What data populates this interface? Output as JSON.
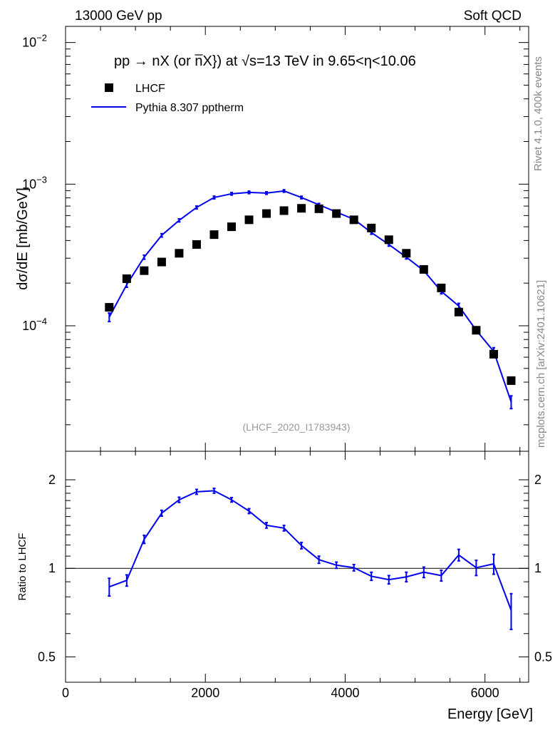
{
  "header": {
    "left_label": "13000 GeV pp",
    "right_label": "Soft QCD"
  },
  "side": {
    "rivet_label": "Rivet 4.1.0,  400k events",
    "mcplots_label": "mcplots.cern.ch [arXiv:2401.10621]"
  },
  "chart_data": {
    "type": "scatter",
    "title_parts": {
      "pre": "pp  →  nX (or ",
      "nbar": "n",
      "mid": "X}) at √",
      "post": "s=13 TeV in 9.65<η<10.06"
    },
    "analysis_id": "(LHCF_2020_I1783943)",
    "xlabel": "Energy [GeV]",
    "ylabel": "dσ/dE [mb/GeV]",
    "ratio_ylabel": "Ratio to LHCF",
    "xlim": [
      0,
      6625
    ],
    "ylim_log": [
      1.3e-05,
      0.013
    ],
    "ratio_ylim": [
      0.41,
      2.5
    ],
    "x_ticks": [
      0,
      2000,
      4000,
      6000
    ],
    "x_tick_labels": [
      "0",
      "2000",
      "4000",
      "6000"
    ],
    "y_tick_labels": [
      {
        "base": "10",
        "exp": "−2",
        "value": 0.01
      },
      {
        "base": "10",
        "exp": "−3",
        "value": 0.001
      },
      {
        "base": "10",
        "exp": "−4",
        "value": 0.0001
      }
    ],
    "ratio_tick_labels": [
      {
        "label": "2",
        "value": 2
      },
      {
        "label": "1",
        "value": 1
      },
      {
        "label": "0.5",
        "value": 0.5
      }
    ],
    "legend": [
      {
        "name": "LHCF",
        "marker": "square",
        "color": "#000000"
      },
      {
        "name": "Pythia 8.307 pptherm",
        "marker": "line",
        "color": "#0000ee"
      }
    ],
    "x": [
      625,
      875,
      1125,
      1375,
      1625,
      1875,
      2125,
      2375,
      2625,
      2875,
      3125,
      3375,
      3625,
      3875,
      4125,
      4375,
      4625,
      4875,
      5125,
      5375,
      5625,
      5875,
      6125,
      6375
    ],
    "series": [
      {
        "name": "LHCF",
        "values": [
          0.000135,
          0.000215,
          0.000245,
          0.000282,
          0.000325,
          0.000375,
          0.00044,
          0.0005,
          0.00056,
          0.00062,
          0.00065,
          0.000675,
          0.00067,
          0.00062,
          0.00056,
          0.00049,
          0.000405,
          0.000325,
          0.00025,
          0.000185,
          0.000125,
          9.3e-05,
          6.3e-05,
          4.1e-05
        ]
      },
      {
        "name": "Pythia 8.307 pptherm",
        "values": [
          0.000115,
          0.000195,
          0.000305,
          0.000435,
          0.000555,
          0.000685,
          0.000805,
          0.000855,
          0.000875,
          0.000865,
          0.000895,
          0.000805,
          0.000715,
          0.000635,
          0.000565,
          0.000455,
          0.000375,
          0.000305,
          0.000245,
          0.000175,
          0.000138,
          9.3e-05,
          6.6e-05,
          2.9e-05
        ],
        "errors": [
          8e-06,
          8e-06,
          1e-05,
          1.2e-05,
          1.4e-05,
          1.6e-05,
          1.8e-05,
          1.8e-05,
          1.8e-05,
          1.8e-05,
          1.8e-05,
          1.7e-05,
          1.6e-05,
          1.5e-05,
          1.3e-05,
          1.2e-05,
          1e-05,
          9e-06,
          8e-06,
          7e-06,
          6e-06,
          5e-06,
          4e-06,
          3e-06
        ]
      }
    ],
    "ratio": {
      "values": [
        0.865,
        0.91,
        1.255,
        1.54,
        1.71,
        1.82,
        1.835,
        1.71,
        1.565,
        1.4,
        1.37,
        1.195,
        1.07,
        1.025,
        1.005,
        0.94,
        0.915,
        0.935,
        0.97,
        0.945,
        1.11,
        1.005,
        1.035,
        0.72
      ],
      "errors": [
        0.06,
        0.04,
        0.04,
        0.035,
        0.035,
        0.035,
        0.035,
        0.03,
        0.03,
        0.03,
        0.03,
        0.03,
        0.03,
        0.025,
        0.025,
        0.03,
        0.03,
        0.035,
        0.04,
        0.04,
        0.05,
        0.06,
        0.08,
        0.1
      ],
      "reference": 1
    }
  }
}
